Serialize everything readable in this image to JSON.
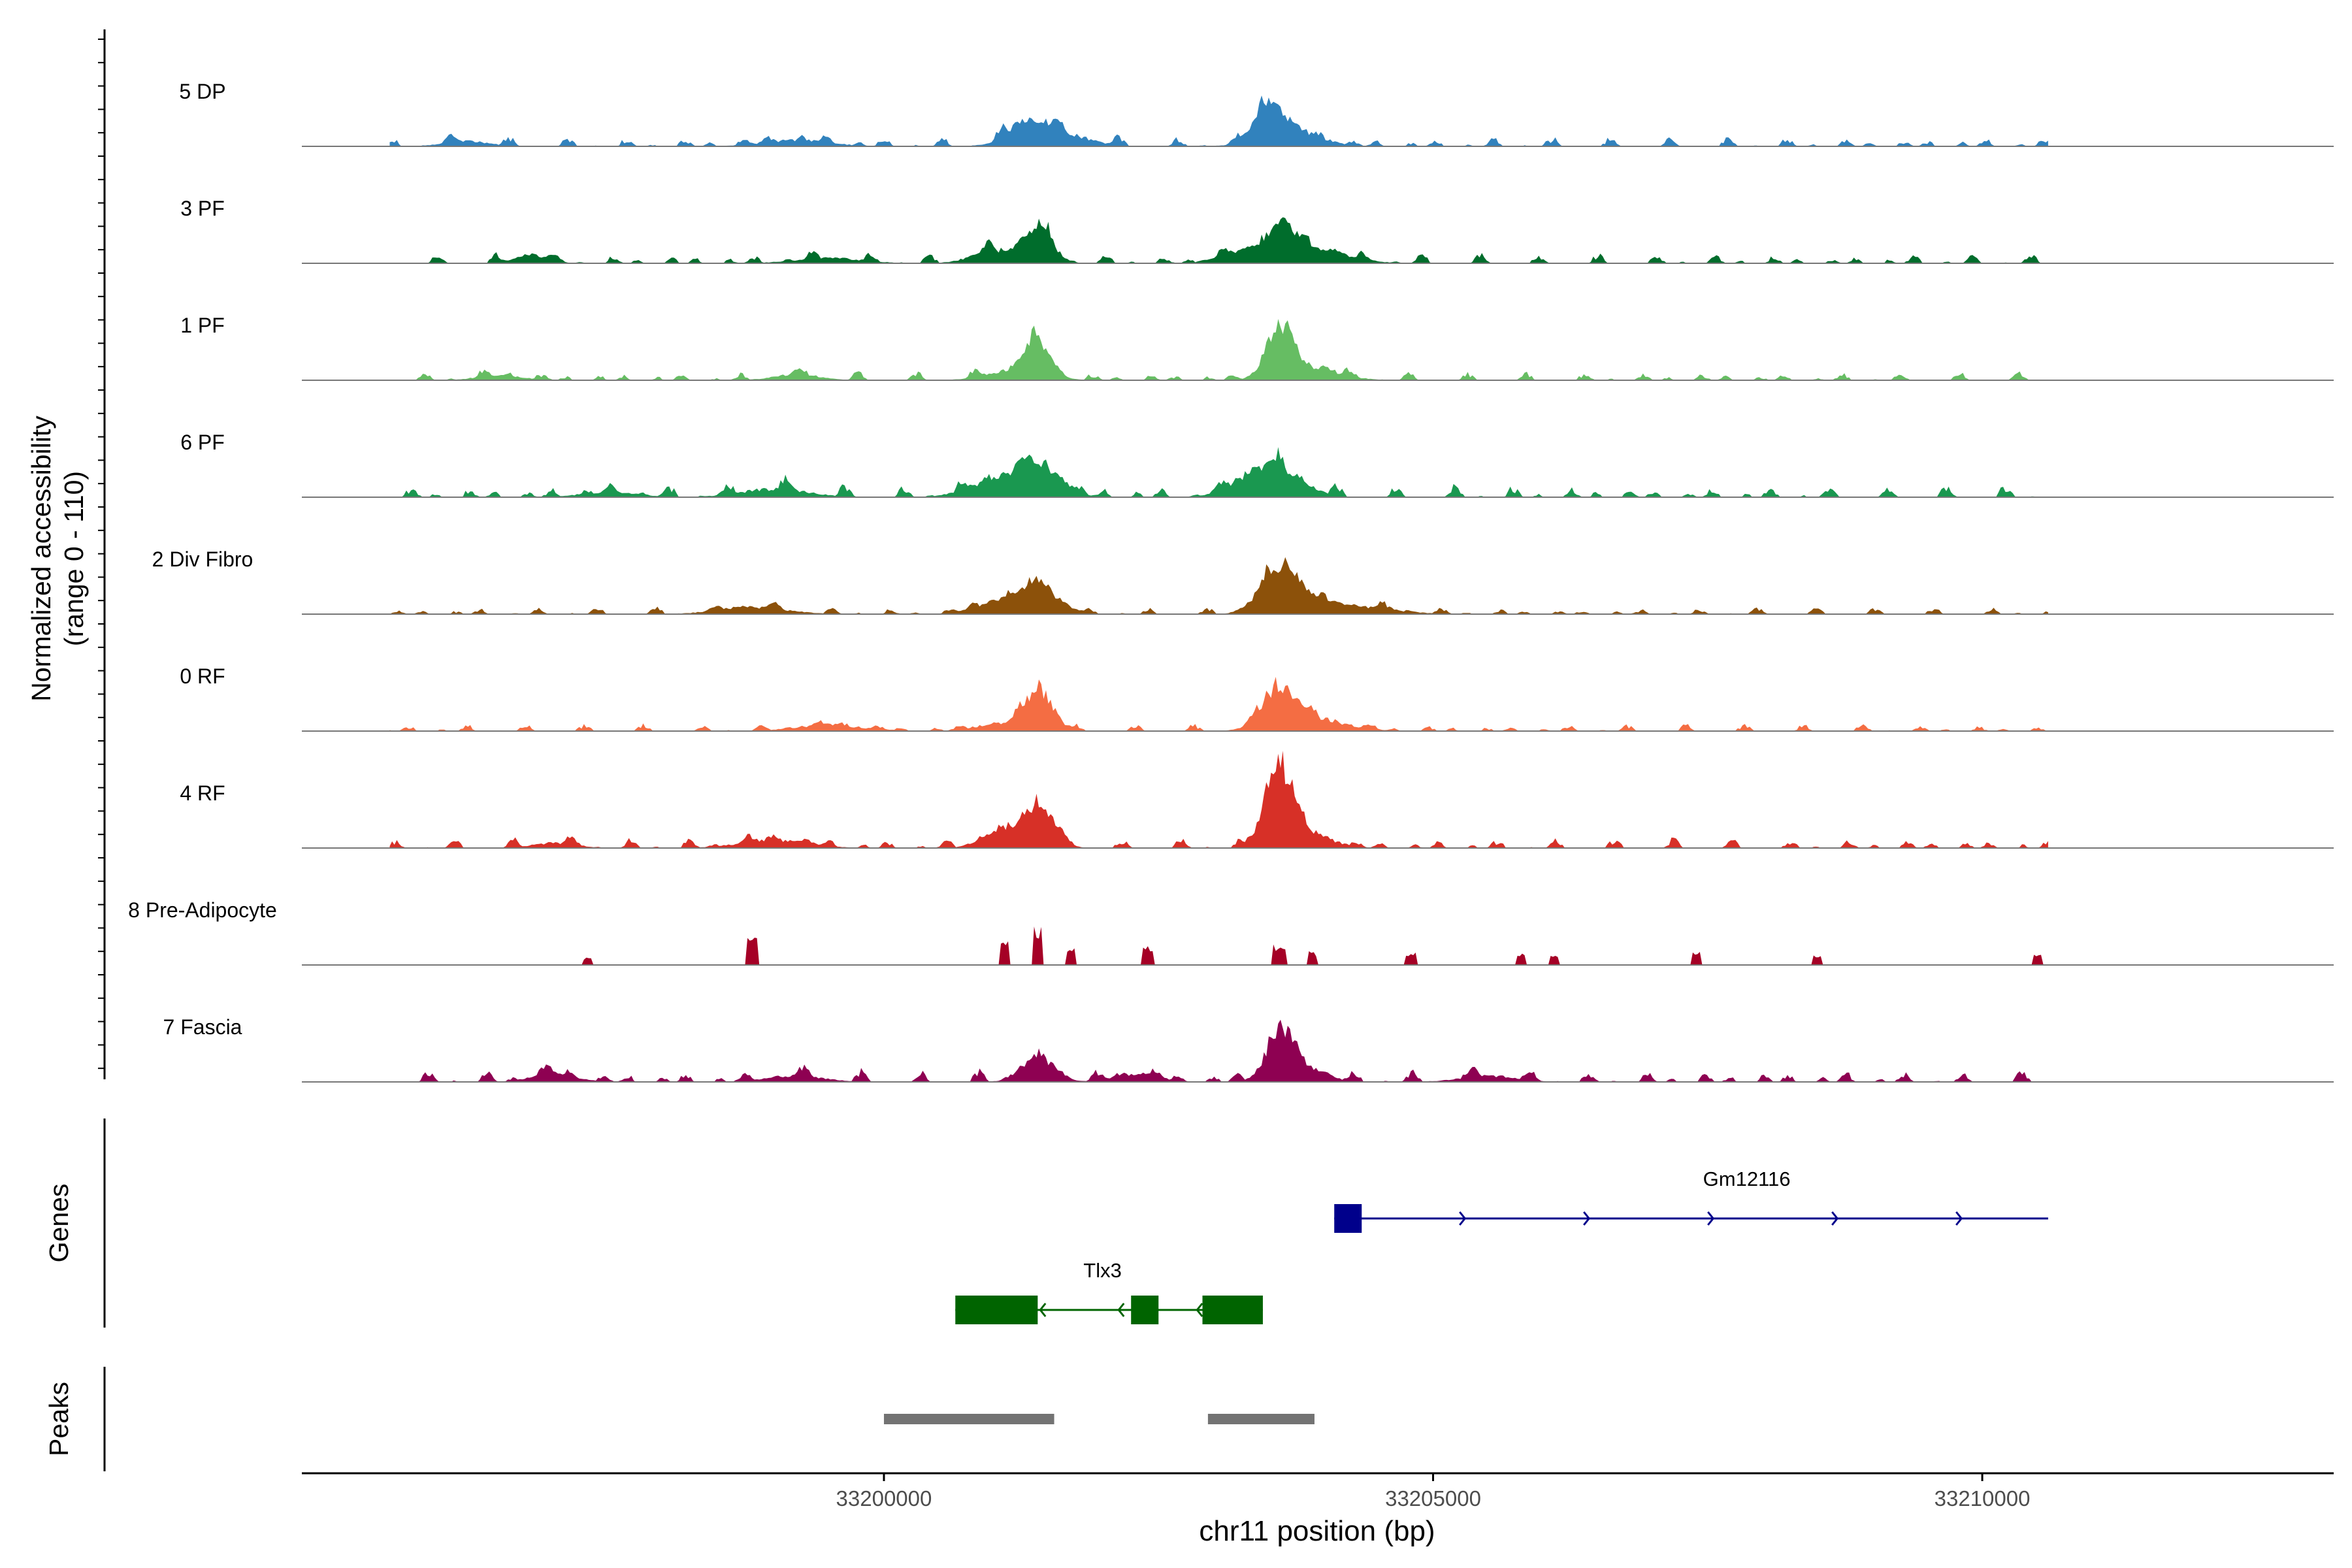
{
  "chart_data": {
    "type": "area",
    "title": "",
    "chromosome": "chr11",
    "xlabel": "chr11 position (bp)",
    "xlim": [
      33194700,
      33213200
    ],
    "x_ticks": [
      33200000,
      33205000,
      33210000
    ],
    "x_tick_labels": [
      "33200000",
      "33205000",
      "33210000"
    ],
    "ylabel_line1": "Normalized accessibility",
    "ylabel_line2": "(range 0 - 110)",
    "ylim": [
      0,
      110
    ],
    "track_start": 33195500,
    "track_end": 33210600,
    "tracks": [
      {
        "name": "5 DP",
        "color": "#3182BD",
        "noise": 7,
        "peaks": [
          [
            33201300,
            20,
            180
          ],
          [
            33201600,
            12,
            250
          ],
          [
            33203500,
            34,
            120
          ],
          [
            33203700,
            16,
            260
          ],
          [
            33199200,
            6,
            300
          ],
          [
            33196200,
            5,
            200
          ]
        ]
      },
      {
        "name": "3 PF",
        "color": "#006D2C",
        "noise": 7,
        "peaks": [
          [
            33201400,
            36,
            130
          ],
          [
            33201000,
            12,
            200
          ],
          [
            33203600,
            30,
            140
          ],
          [
            33203900,
            14,
            300
          ],
          [
            33203200,
            10,
            180
          ],
          [
            33196800,
            8,
            150
          ],
          [
            33199500,
            5,
            300
          ]
        ]
      },
      {
        "name": "1 PF",
        "color": "#66BD63",
        "noise": 6,
        "peaks": [
          [
            33201400,
            34,
            110
          ],
          [
            33201200,
            10,
            250
          ],
          [
            33203600,
            48,
            120
          ],
          [
            33203900,
            12,
            250
          ],
          [
            33199200,
            6,
            200
          ],
          [
            33196500,
            5,
            200
          ]
        ]
      },
      {
        "name": "6 PF",
        "color": "#1A9850",
        "noise": 9,
        "peaks": [
          [
            33201400,
            30,
            200
          ],
          [
            33201000,
            14,
            250
          ],
          [
            33203600,
            26,
            220
          ],
          [
            33203300,
            12,
            200
          ],
          [
            33199000,
            8,
            300
          ],
          [
            33197500,
            5,
            250
          ]
        ]
      },
      {
        "name": "2 Div Fibro",
        "color": "#8C510A",
        "noise": 5,
        "peaks": [
          [
            33201400,
            28,
            180
          ],
          [
            33201000,
            10,
            200
          ],
          [
            33203600,
            44,
            170
          ],
          [
            33203900,
            10,
            250
          ],
          [
            33198800,
            7,
            300
          ],
          [
            33204400,
            6,
            300
          ]
        ]
      },
      {
        "name": "0 RF",
        "color": "#F46D43",
        "noise": 5,
        "peaks": [
          [
            33201400,
            42,
            130
          ],
          [
            33203600,
            40,
            150
          ],
          [
            33203900,
            12,
            300
          ],
          [
            33199500,
            6,
            300
          ],
          [
            33201000,
            6,
            200
          ]
        ]
      },
      {
        "name": "4 RF",
        "color": "#D73027",
        "noise": 7,
        "peaks": [
          [
            33201400,
            44,
            140
          ],
          [
            33201000,
            14,
            150
          ],
          [
            33203600,
            80,
            130
          ],
          [
            33203900,
            12,
            200
          ],
          [
            33199000,
            8,
            300
          ],
          [
            33197000,
            5,
            200
          ]
        ]
      },
      {
        "name": "8 Pre-Adipocyte",
        "color": "#A50026",
        "noise": 0,
        "sparse": true,
        "peaks": [
          [
            33201400,
            40,
            90
          ],
          [
            33201100,
            24,
            80
          ],
          [
            33201700,
            20,
            80
          ],
          [
            33198800,
            28,
            100
          ],
          [
            33203600,
            22,
            110
          ],
          [
            33203900,
            14,
            100
          ],
          [
            33202400,
            18,
            100
          ],
          [
            33197300,
            8,
            100
          ],
          [
            33204800,
            12,
            100
          ],
          [
            33207400,
            14,
            100
          ],
          [
            33206100,
            12,
            100
          ],
          [
            33205800,
            12,
            100
          ],
          [
            33210500,
            10,
            100
          ],
          [
            33208500,
            12,
            100
          ]
        ]
      },
      {
        "name": "7 Fascia",
        "color": "#8E0152",
        "noise": 9,
        "peaks": [
          [
            33201400,
            24,
            150
          ],
          [
            33203600,
            42,
            120
          ],
          [
            33203800,
            14,
            200
          ],
          [
            33197000,
            8,
            200
          ],
          [
            33199200,
            6,
            250
          ],
          [
            33202300,
            8,
            200
          ],
          [
            33205500,
            6,
            250
          ]
        ]
      }
    ],
    "genes_label": "Genes",
    "genes": [
      {
        "name": "Gm12116",
        "strand": "+",
        "color": "#00008B",
        "start": 33204100,
        "end": 33210600,
        "exons": [
          [
            33204100,
            33204350
          ]
        ]
      },
      {
        "name": "Tlx3",
        "strand": "-",
        "color": "#006400",
        "start": 33200650,
        "end": 33203450,
        "exons": [
          [
            33200650,
            33201400
          ],
          [
            33202250,
            33202500
          ],
          [
            33202900,
            33203450
          ]
        ]
      }
    ],
    "peaks_label": "Peaks",
    "peak_regions": [
      [
        33200000,
        33201550
      ],
      [
        33202950,
        33203920
      ]
    ]
  }
}
